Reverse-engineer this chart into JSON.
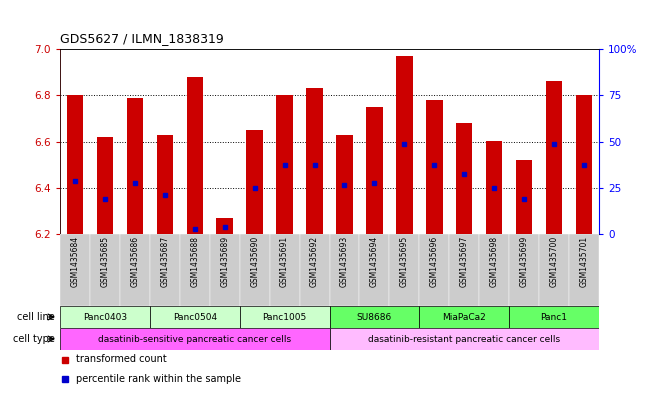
{
  "title": "GDS5627 / ILMN_1838319",
  "samples": [
    "GSM1435684",
    "GSM1435685",
    "GSM1435686",
    "GSM1435687",
    "GSM1435688",
    "GSM1435689",
    "GSM1435690",
    "GSM1435691",
    "GSM1435692",
    "GSM1435693",
    "GSM1435694",
    "GSM1435695",
    "GSM1435696",
    "GSM1435697",
    "GSM1435698",
    "GSM1435699",
    "GSM1435700",
    "GSM1435701"
  ],
  "bar_heights": [
    6.8,
    6.62,
    6.79,
    6.63,
    6.88,
    6.27,
    6.65,
    6.8,
    6.83,
    6.63,
    6.75,
    6.97,
    6.78,
    6.68,
    6.6,
    6.52,
    6.86,
    6.8
  ],
  "percentile_values": [
    6.43,
    6.35,
    6.42,
    6.37,
    6.22,
    6.23,
    6.4,
    6.5,
    6.5,
    6.41,
    6.42,
    6.59,
    6.5,
    6.46,
    6.4,
    6.35,
    6.59,
    6.5
  ],
  "bar_color": "#cc0000",
  "percentile_color": "#0000cc",
  "ylim_left": [
    6.2,
    7.0
  ],
  "yticks_left": [
    6.2,
    6.4,
    6.6,
    6.8,
    7.0
  ],
  "yticks_right_vals": [
    0,
    25,
    50,
    75,
    100
  ],
  "yticks_right_labels": [
    "0",
    "25",
    "50",
    "75",
    "100%"
  ],
  "cell_lines": [
    {
      "label": "Panc0403",
      "start": 0,
      "end": 3
    },
    {
      "label": "Panc0504",
      "start": 3,
      "end": 6
    },
    {
      "label": "Panc1005",
      "start": 6,
      "end": 9
    },
    {
      "label": "SU8686",
      "start": 9,
      "end": 12
    },
    {
      "label": "MiaPaCa2",
      "start": 12,
      "end": 15
    },
    {
      "label": "Panc1",
      "start": 15,
      "end": 18
    }
  ],
  "cell_line_colors": [
    "#ccffcc",
    "#ccffcc",
    "#ccffcc",
    "#66ff66",
    "#66ff66",
    "#66ff66"
  ],
  "cell_types": [
    {
      "label": "dasatinib-sensitive pancreatic cancer cells",
      "start": 0,
      "end": 9,
      "color": "#ff66ff"
    },
    {
      "label": "dasatinib-resistant pancreatic cancer cells",
      "start": 9,
      "end": 18,
      "color": "#ffbbff"
    }
  ],
  "legend_items": [
    {
      "color": "#cc0000",
      "label": "transformed count"
    },
    {
      "color": "#0000cc",
      "label": "percentile rank within the sample"
    }
  ],
  "tick_bg_color": "#cccccc",
  "grid_color": "#000000",
  "right_axis_color": "#0000ff",
  "grid_yticks": [
    6.4,
    6.6,
    6.8
  ]
}
